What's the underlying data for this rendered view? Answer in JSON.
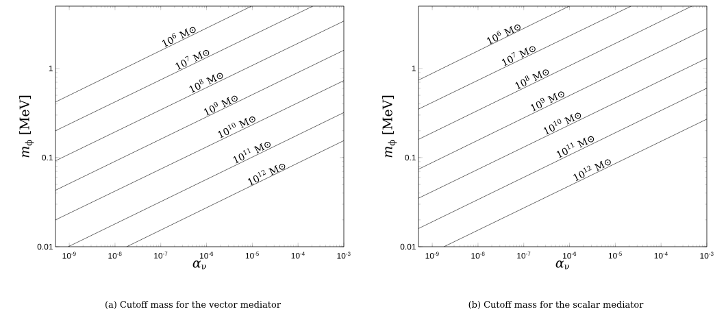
{
  "chart_data": [
    {
      "type": "line",
      "title": "(a) Cutoff mass for the vector mediator",
      "xlabel": "*α*$_{ν}$",
      "ylabel": "*m*$_{ϕ}$ [MeV]",
      "log": "xy",
      "grid": false,
      "xlim": [
        5e-10,
        0.001
      ],
      "ylim": [
        0.01,
        5
      ],
      "xticks": [
        {
          "value": 1e-09,
          "label": "10$^{-9}$"
        },
        {
          "value": 1e-08,
          "label": "10$^{-8}$"
        },
        {
          "value": 1e-07,
          "label": "10$^{-7}$"
        },
        {
          "value": 1e-06,
          "label": "10$^{-6}$"
        },
        {
          "value": 1e-05,
          "label": "10$^{-5}$"
        },
        {
          "value": 0.0001,
          "label": "10$^{-4}$"
        },
        {
          "value": 0.001,
          "label": "10$^{-3}$"
        }
      ],
      "yticks": [
        0.01,
        0.1,
        1
      ],
      "series": [
        {
          "color": "#000000",
          "x": [
            5e-10,
            9.6e-06
          ],
          "values": [
            0.42,
            5
          ]
        },
        {
          "color": "#000000",
          "x": [
            5e-10,
            0.00021
          ],
          "values": [
            0.2,
            5
          ]
        },
        {
          "color": "#000000",
          "x": [
            5e-10,
            0.001
          ],
          "values": [
            0.092,
            3.4
          ]
        },
        {
          "color": "#000000",
          "x": [
            5e-10,
            0.001
          ],
          "values": [
            0.043,
            1.6
          ]
        },
        {
          "color": "#000000",
          "x": [
            5e-10,
            0.001
          ],
          "values": [
            0.02,
            0.73
          ]
        },
        {
          "color": "#000000",
          "x": [
            9.5e-10,
            0.001
          ],
          "values": [
            0.01,
            0.32
          ]
        },
        {
          "color": "#000000",
          "x": [
            1.8e-08,
            0.001
          ],
          "values": [
            0.01,
            0.155
          ]
        }
      ],
      "annotations": [
        {
          "text": "10$^{6}$ M⊙",
          "x": 2.8e-07,
          "y": 2.06
        },
        {
          "text": "10$^{7}$ M⊙",
          "x": 5.5e-07,
          "y": 1.14
        },
        {
          "text": "10$^{8}$ M⊙",
          "x": 1.1e-06,
          "y": 0.63
        },
        {
          "text": "10$^{9}$ M⊙",
          "x": 2.3e-06,
          "y": 0.35
        },
        {
          "text": "10$^{10}$ M⊙",
          "x": 5.1e-06,
          "y": 0.2
        },
        {
          "text": "10$^{11}$ M⊙",
          "x": 1.1e-05,
          "y": 0.104
        },
        {
          "text": "10$^{12}$ M⊙",
          "x": 2.3e-05,
          "y": 0.059
        }
      ]
    },
    {
      "type": "line",
      "title": "(b) Cutoff mass for the scalar mediator",
      "xlabel": "*α*$_{ν}$",
      "ylabel": "*m*$_{ϕ}$ [MeV]",
      "log": "xy",
      "grid": false,
      "xlim": [
        5e-10,
        0.001
      ],
      "ylim": [
        0.01,
        5
      ],
      "xticks": [
        {
          "value": 1e-09,
          "label": "10$^{-9}$"
        },
        {
          "value": 1e-08,
          "label": "10$^{-8}$"
        },
        {
          "value": 1e-07,
          "label": "10$^{-7}$"
        },
        {
          "value": 1e-06,
          "label": "10$^{-6}$"
        },
        {
          "value": 1e-05,
          "label": "10$^{-5}$"
        },
        {
          "value": 0.0001,
          "label": "10$^{-4}$"
        },
        {
          "value": 0.001,
          "label": "10$^{-3}$"
        }
      ],
      "yticks": [
        0.01,
        0.1,
        1
      ],
      "series": [
        {
          "color": "#000000",
          "x": [
            5e-10,
            9.8e-07
          ],
          "values": [
            0.74,
            5
          ]
        },
        {
          "color": "#000000",
          "x": [
            5e-10,
            2.2e-05
          ],
          "values": [
            0.35,
            5
          ]
        },
        {
          "color": "#000000",
          "x": [
            5e-10,
            0.00047
          ],
          "values": [
            0.16,
            5
          ]
        },
        {
          "color": "#000000",
          "x": [
            5e-10,
            0.001
          ],
          "values": [
            0.074,
            2.8
          ]
        },
        {
          "color": "#000000",
          "x": [
            5e-10,
            0.001
          ],
          "values": [
            0.035,
            1.3
          ]
        },
        {
          "color": "#000000",
          "x": [
            5e-10,
            0.001
          ],
          "values": [
            0.016,
            0.6
          ]
        },
        {
          "color": "#000000",
          "x": [
            1.8e-09,
            0.001
          ],
          "values": [
            0.01,
            0.27
          ]
        }
      ],
      "annotations": [
        {
          "text": "10$^{6}$ M⊙",
          "x": 4.1e-08,
          "y": 2.2
        },
        {
          "text": "10$^{7}$ M⊙",
          "x": 8.7e-08,
          "y": 1.26
        },
        {
          "text": "10$^{8}$ M⊙",
          "x": 1.7e-07,
          "y": 0.69
        },
        {
          "text": "10$^{9}$ M⊙",
          "x": 3.7e-07,
          "y": 0.39
        },
        {
          "text": "10$^{10}$ M⊙",
          "x": 7.8e-07,
          "y": 0.22
        },
        {
          "text": "10$^{11}$ M⊙",
          "x": 1.5e-06,
          "y": 0.12
        },
        {
          "text": "10$^{12}$ M⊙",
          "x": 3.5e-06,
          "y": 0.066
        }
      ]
    }
  ]
}
